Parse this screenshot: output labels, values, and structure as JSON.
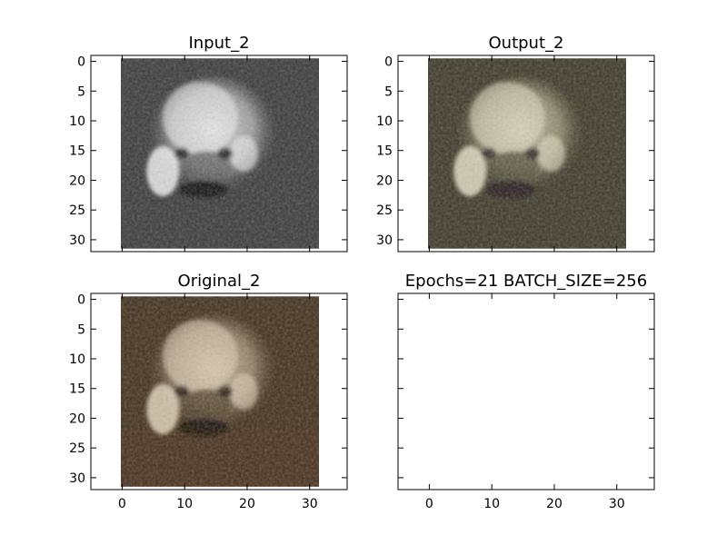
{
  "chart_data": [
    {
      "type": "image",
      "title": "Input_2",
      "image_kind": "grayscale frog",
      "xlim": [
        -5,
        36
      ],
      "ylim": [
        32,
        -1
      ],
      "xticks": [],
      "yticks": [
        0,
        5,
        10,
        15,
        20,
        25,
        30
      ],
      "show_xtick_labels": false,
      "show_ytick_labels": true
    },
    {
      "type": "image",
      "title": "Output_2",
      "image_kind": "reconstructed color frog (muted)",
      "xlim": [
        -5,
        36
      ],
      "ylim": [
        32,
        -1
      ],
      "xticks": [],
      "yticks": [
        0,
        5,
        10,
        15,
        20,
        25,
        30
      ],
      "show_xtick_labels": false,
      "show_ytick_labels": true
    },
    {
      "type": "image",
      "title": "Original_2",
      "image_kind": "color frog",
      "xlim": [
        -5,
        36
      ],
      "ylim": [
        32,
        -1
      ],
      "xticks": [
        0,
        10,
        20,
        30
      ],
      "yticks": [
        0,
        5,
        10,
        15,
        20,
        25,
        30
      ],
      "show_xtick_labels": true,
      "show_ytick_labels": true
    },
    {
      "type": "image",
      "title": "Epochs=21 BATCH_SIZE=256",
      "image_kind": "empty",
      "xlim": [
        -5,
        36
      ],
      "ylim": [
        32,
        -1
      ],
      "xticks": [
        0,
        10,
        20,
        30
      ],
      "yticks": [
        0,
        5,
        10,
        15,
        20,
        25,
        30
      ],
      "show_xtick_labels": true,
      "show_ytick_labels": false
    }
  ]
}
